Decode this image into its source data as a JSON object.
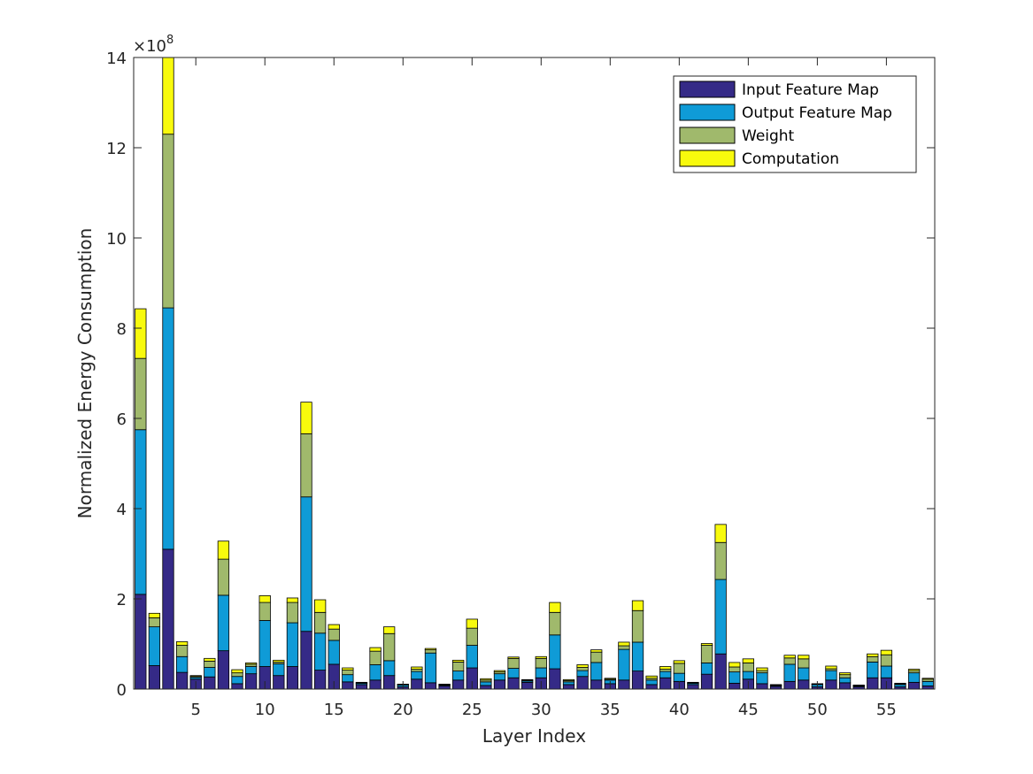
{
  "chart_data": {
    "type": "bar",
    "stacked": true,
    "title": "",
    "xlabel": "Layer Index",
    "ylabel": "Normalized Energy Consumption",
    "y_multiplier": {
      "base": "10",
      "exponent": "8",
      "symbol": "×"
    },
    "xlim": [
      0.5,
      58.5
    ],
    "ylim": [
      0,
      14
    ],
    "x_ticks": [
      5,
      10,
      15,
      20,
      25,
      30,
      35,
      40,
      45,
      50,
      55
    ],
    "y_ticks": [
      0,
      2,
      4,
      6,
      8,
      10,
      12,
      14
    ],
    "grid": false,
    "legend_position": "top-right",
    "x": [
      1,
      2,
      3,
      4,
      5,
      6,
      7,
      8,
      9,
      10,
      11,
      12,
      13,
      14,
      15,
      16,
      17,
      18,
      19,
      20,
      21,
      22,
      23,
      24,
      25,
      26,
      27,
      28,
      29,
      30,
      31,
      32,
      33,
      34,
      35,
      36,
      37,
      38,
      39,
      40,
      41,
      42,
      43,
      44,
      45,
      46,
      47,
      48,
      49,
      50,
      51,
      52,
      53,
      54,
      55,
      56,
      57,
      58
    ],
    "series": [
      {
        "name": "Input Feature Map",
        "color": "#352a87",
        "values": [
          2.1,
          0.52,
          3.1,
          0.37,
          0.22,
          0.27,
          0.85,
          0.12,
          0.34,
          0.5,
          0.3,
          0.5,
          1.28,
          0.42,
          0.55,
          0.16,
          0.1,
          0.2,
          0.3,
          0.05,
          0.22,
          0.14,
          0.07,
          0.2,
          0.47,
          0.08,
          0.2,
          0.25,
          0.15,
          0.25,
          0.45,
          0.1,
          0.28,
          0.2,
          0.12,
          0.2,
          0.4,
          0.1,
          0.25,
          0.17,
          0.1,
          0.33,
          0.78,
          0.13,
          0.22,
          0.12,
          0.06,
          0.17,
          0.2,
          0.05,
          0.2,
          0.14,
          0.05,
          0.25,
          0.25,
          0.05,
          0.15,
          0.07
        ]
      },
      {
        "name": "Output Feature Map",
        "color": "#0f9bd7",
        "values": [
          3.65,
          0.86,
          5.35,
          0.35,
          0.04,
          0.21,
          1.23,
          0.16,
          0.16,
          1.02,
          0.26,
          0.97,
          2.98,
          0.82,
          0.53,
          0.16,
          0.03,
          0.34,
          0.33,
          0.04,
          0.17,
          0.66,
          0.02,
          0.2,
          0.5,
          0.08,
          0.14,
          0.21,
          0.03,
          0.22,
          0.75,
          0.06,
          0.13,
          0.39,
          0.08,
          0.68,
          0.64,
          0.1,
          0.14,
          0.18,
          0.03,
          0.25,
          1.65,
          0.25,
          0.17,
          0.24,
          0.02,
          0.38,
          0.27,
          0.05,
          0.21,
          0.11,
          0.02,
          0.35,
          0.26,
          0.05,
          0.21,
          0.1
        ]
      },
      {
        "name": "Weight",
        "color": "#a0b96c",
        "values": [
          1.58,
          0.2,
          3.85,
          0.25,
          0.02,
          0.14,
          0.8,
          0.08,
          0.05,
          0.4,
          0.04,
          0.45,
          1.4,
          0.46,
          0.25,
          0.1,
          0.01,
          0.3,
          0.6,
          0.01,
          0.05,
          0.07,
          0.01,
          0.2,
          0.38,
          0.04,
          0.04,
          0.22,
          0.02,
          0.21,
          0.5,
          0.03,
          0.07,
          0.23,
          0.02,
          0.08,
          0.7,
          0.04,
          0.05,
          0.22,
          0.01,
          0.39,
          0.82,
          0.11,
          0.19,
          0.05,
          0.01,
          0.14,
          0.2,
          0.01,
          0.04,
          0.07,
          0.01,
          0.12,
          0.25,
          0.02,
          0.05,
          0.05
        ]
      },
      {
        "name": "Computation",
        "color": "#f8fa0d",
        "values": [
          1.1,
          0.1,
          1.75,
          0.08,
          0.02,
          0.06,
          0.4,
          0.07,
          0.03,
          0.15,
          0.04,
          0.1,
          0.7,
          0.28,
          0.1,
          0.05,
          0.01,
          0.08,
          0.15,
          0.01,
          0.05,
          0.03,
          0.01,
          0.04,
          0.2,
          0.03,
          0.03,
          0.03,
          0.01,
          0.04,
          0.22,
          0.02,
          0.06,
          0.05,
          0.02,
          0.08,
          0.22,
          0.05,
          0.06,
          0.06,
          0.01,
          0.04,
          0.4,
          0.1,
          0.09,
          0.06,
          0.01,
          0.06,
          0.08,
          0.01,
          0.06,
          0.04,
          0.01,
          0.06,
          0.1,
          0.01,
          0.03,
          0.02
        ]
      }
    ]
  }
}
